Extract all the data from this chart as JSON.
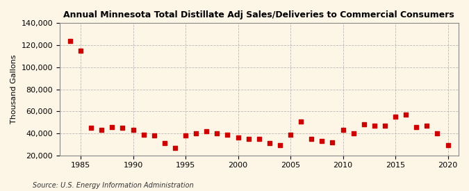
{
  "title": "Annual Minnesota Total Distillate Adj Sales/Deliveries to Commercial Consumers",
  "ylabel": "Thousand Gallons",
  "source": "Source: U.S. Energy Information Administration",
  "background_color": "#fdf5e6",
  "plot_bg_color": "#fdf5e6",
  "marker_color": "#cc0000",
  "marker": "s",
  "marker_size": 16,
  "grid_color": "#aaaaaa",
  "xlim": [
    1983,
    2021
  ],
  "ylim": [
    20000,
    140000
  ],
  "yticks": [
    20000,
    40000,
    60000,
    80000,
    100000,
    120000,
    140000
  ],
  "xticks": [
    1985,
    1990,
    1995,
    2000,
    2005,
    2010,
    2015,
    2020
  ],
  "years": [
    1984,
    1985,
    1986,
    1987,
    1988,
    1989,
    1990,
    1991,
    1992,
    1993,
    1994,
    1995,
    1996,
    1997,
    1998,
    1999,
    2000,
    2001,
    2002,
    2003,
    2004,
    2005,
    2006,
    2007,
    2008,
    2009,
    2010,
    2011,
    2012,
    2013,
    2014,
    2015,
    2016,
    2017,
    2018,
    2019,
    2020
  ],
  "values": [
    124000,
    115000,
    45000,
    43000,
    46000,
    45000,
    43000,
    39000,
    38000,
    31000,
    27000,
    38000,
    40000,
    42000,
    40000,
    39000,
    36000,
    35000,
    35000,
    31000,
    29000,
    39000,
    51000,
    35000,
    33000,
    32000,
    43000,
    40000,
    48000,
    47000,
    47000,
    55000,
    57000,
    46000,
    47000,
    40000,
    29000
  ]
}
